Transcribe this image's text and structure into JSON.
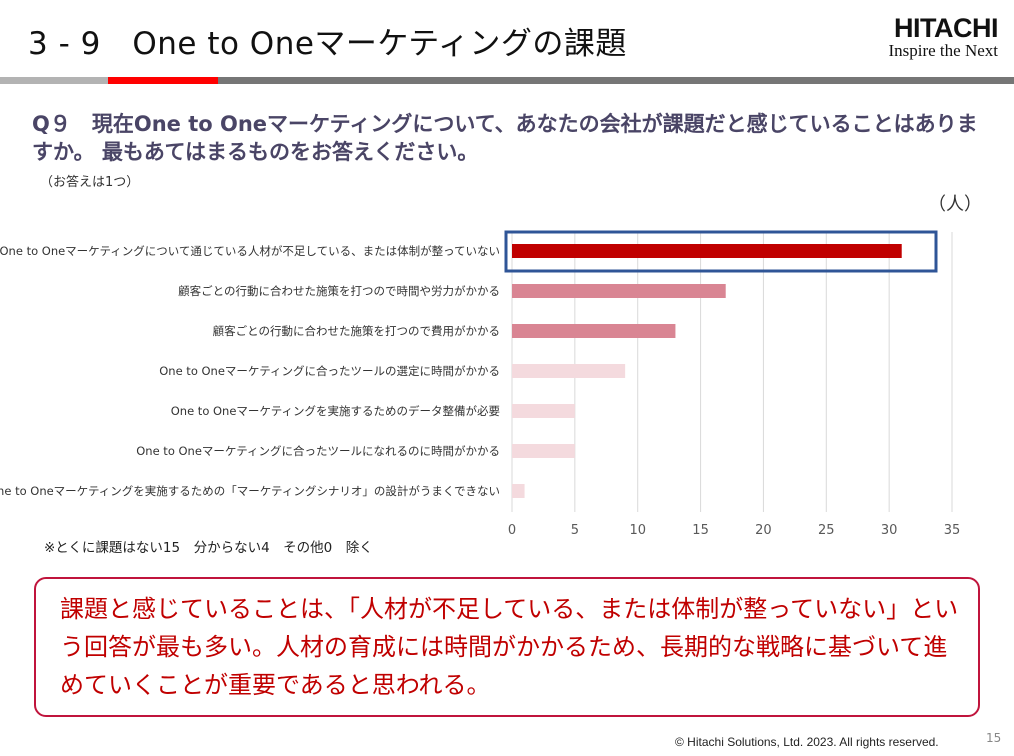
{
  "header": {
    "title": "3 - 9　One to Oneマーケティングの課題",
    "logo_brand": "HITACHI",
    "logo_tagline": "Inspire the Next"
  },
  "question": {
    "text": "Q９　現在One to Oneマーケティングについて、あなたの会社が課題だと感じていることはありますか。 最もあてはまるものをお答えください。",
    "note": "（お答えは1つ）"
  },
  "chart_data": {
    "type": "bar",
    "orientation": "horizontal",
    "unit_label": "（人）",
    "categories": [
      "One to Oneマーケティングについて通じている人材が不足している、または体制が整っていない",
      "顧客ごとの行動に合わせた施策を打つので時間や労力がかかる",
      "顧客ごとの行動に合わせた施策を打つので費用がかかる",
      "One to Oneマーケティングに合ったツールの選定に時間がかかる",
      "One to Oneマーケティングを実施するためのデータ整備が必要",
      "One to Oneマーケティングに合ったツールになれるのに時間がかかる",
      "One to Oneマーケティングを実施するための「マーケティングシナリオ」の設計がうまくできない"
    ],
    "values": [
      31,
      17,
      13,
      9,
      5,
      5,
      1
    ],
    "colors": [
      "#c00000",
      "#d98593",
      "#d98593",
      "#f4dade",
      "#f4dade",
      "#f4dade",
      "#f4dade"
    ],
    "highlight_index": 0,
    "highlight_color": "#2f5597",
    "xlim": [
      0,
      35
    ],
    "xticks": [
      "0",
      "5",
      "10",
      "15",
      "20",
      "25",
      "30",
      "35"
    ],
    "grid": true
  },
  "footnote": "※とくに課題はない15　分からない4　その他0　除く",
  "callout": "課題と感じていることは、「人材が不足している、または体制が整っていない」という回答が最も多い。人材の育成には時間がかかるため、長期的な戦略に基づいて進めていくことが重要であると思われる。",
  "footer": {
    "copyright": "© Hitachi Solutions, Ltd. 2023. All rights reserved.",
    "page": "15"
  }
}
